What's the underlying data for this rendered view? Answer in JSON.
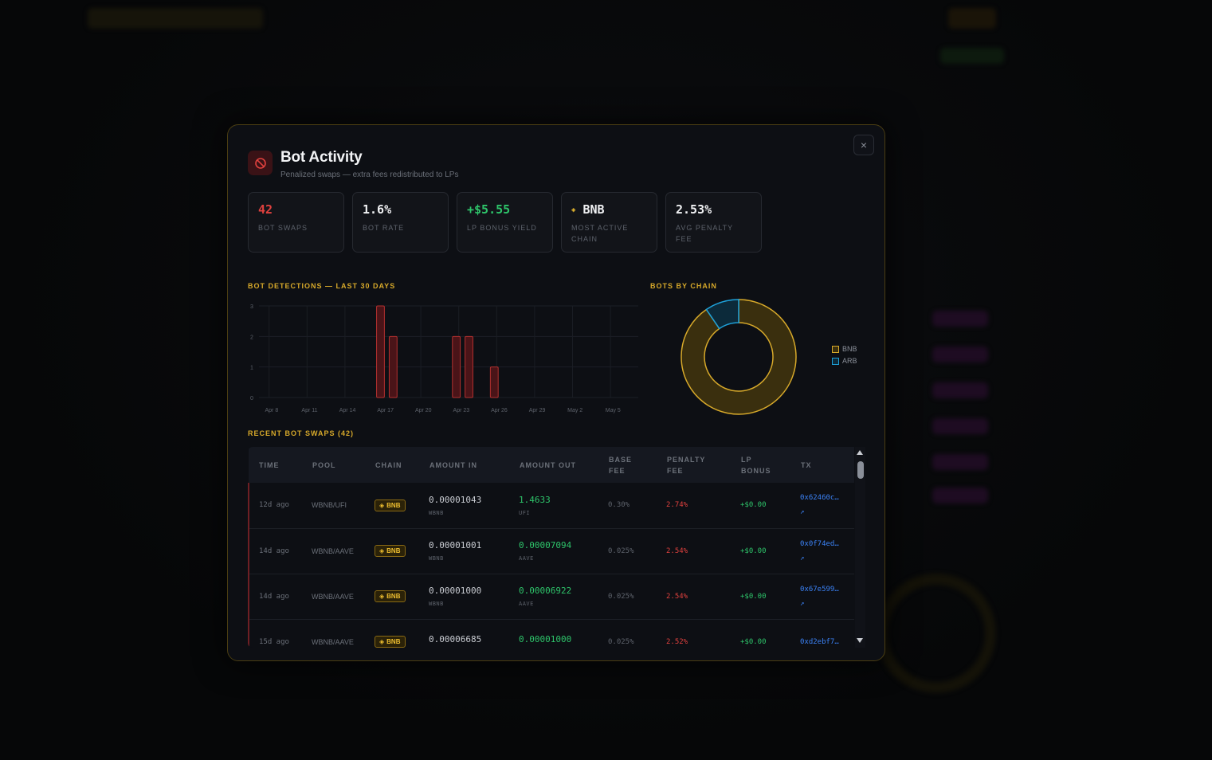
{
  "modal": {
    "title": "Bot Activity",
    "subtitle": "Penalized swaps — extra fees redistributed to LPs",
    "close_label": "×"
  },
  "stats": [
    {
      "value": "42",
      "label": "BOT SWAPS",
      "color": "#e0413e"
    },
    {
      "value": "1.6%",
      "label": "BOT RATE",
      "color": "#f0f1f3"
    },
    {
      "value": "+$5.55",
      "label": "LP BONUS YIELD",
      "color": "#2ec46a"
    },
    {
      "value": "BNB",
      "label": "MOST ACTIVE CHAIN",
      "color": "#f0f1f3",
      "icon": "bnb-icon"
    },
    {
      "value": "2.53%",
      "label": "AVG PENALTY FEE",
      "color": "#f0f1f3"
    }
  ],
  "detections_title": "BOT DETECTIONS — LAST 30 DAYS",
  "chain_title": "BOTS BY CHAIN",
  "swaps_title": "RECENT BOT SWAPS (42)",
  "chart_data": [
    {
      "type": "bar",
      "title": "BOT DETECTIONS — LAST 30 DAYS",
      "xlabel": "",
      "ylabel": "",
      "ylim": [
        0,
        3
      ],
      "yticks": [
        0,
        1,
        2,
        3
      ],
      "x_tick_labels": [
        "Apr 8",
        "Apr 11",
        "Apr 14",
        "Apr 17",
        "Apr 20",
        "Apr 23",
        "Apr 26",
        "Apr 29",
        "May 2",
        "May 5"
      ],
      "categories": [
        "Apr 7",
        "Apr 8",
        "Apr 9",
        "Apr 10",
        "Apr 11",
        "Apr 12",
        "Apr 13",
        "Apr 14",
        "Apr 15",
        "Apr 16",
        "Apr 17",
        "Apr 18",
        "Apr 19",
        "Apr 20",
        "Apr 21",
        "Apr 22",
        "Apr 23",
        "Apr 24",
        "Apr 25",
        "Apr 26",
        "Apr 27",
        "Apr 28",
        "Apr 29",
        "Apr 30",
        "May 1",
        "May 2",
        "May 3",
        "May 4",
        "May 5",
        "May 6"
      ],
      "values": [
        0,
        0,
        0,
        0,
        0,
        0,
        0,
        0,
        0,
        3,
        2,
        0,
        0,
        0,
        0,
        2,
        2,
        0,
        1,
        0,
        0,
        0,
        0,
        0,
        0,
        0,
        0,
        0,
        0,
        0
      ],
      "grid": true,
      "color": "#e0413e"
    },
    {
      "type": "pie",
      "title": "BOTS BY CHAIN",
      "categories": [
        "BNB",
        "ARB"
      ],
      "values": [
        38,
        4
      ],
      "colors": [
        "#d7a92a",
        "#1ea0d8"
      ],
      "legend": "right"
    }
  ],
  "table": {
    "headers": [
      [
        "TIME"
      ],
      [
        "POOL"
      ],
      [
        "CHAIN"
      ],
      [
        "AMOUNT IN"
      ],
      [
        "AMOUNT OUT"
      ],
      [
        "BASE",
        "FEE"
      ],
      [
        "PENALTY",
        "FEE"
      ],
      [
        "LP",
        "BONUS"
      ],
      [
        "TX"
      ]
    ],
    "rows": [
      {
        "time": "12d ago",
        "pool": "WBNB/UFI",
        "chain": "BNB",
        "amount_in": "0.00001043",
        "token_in": "WBNB",
        "amount_out": "1.4633",
        "token_out": "UFI",
        "base_fee": "0.30%",
        "penalty_fee": "2.74%",
        "lp_bonus": "+$0.00",
        "tx": "0x62460c…",
        "tx_link": "↗"
      },
      {
        "time": "14d ago",
        "pool": "WBNB/AAVE",
        "chain": "BNB",
        "amount_in": "0.00001001",
        "token_in": "WBNB",
        "amount_out": "0.00007094",
        "token_out": "AAVE",
        "base_fee": "0.025%",
        "penalty_fee": "2.54%",
        "lp_bonus": "+$0.00",
        "tx": "0x0f74ed…",
        "tx_link": "↗"
      },
      {
        "time": "14d ago",
        "pool": "WBNB/AAVE",
        "chain": "BNB",
        "amount_in": "0.00001000",
        "token_in": "WBNB",
        "amount_out": "0.00006922",
        "token_out": "AAVE",
        "base_fee": "0.025%",
        "penalty_fee": "2.54%",
        "lp_bonus": "+$0.00",
        "tx": "0x67e599…",
        "tx_link": "↗"
      },
      {
        "time": "15d ago",
        "pool": "WBNB/AAVE",
        "chain": "BNB",
        "amount_in": "0.00006685",
        "token_in": "",
        "amount_out": "0.00001000",
        "token_out": "",
        "base_fee": "0.025%",
        "penalty_fee": "2.52%",
        "lp_bonus": "+$0.00",
        "tx": "0xd2ebf7…",
        "tx_link": ""
      }
    ]
  },
  "colors": {
    "accent": "#d7a92a",
    "danger": "#e0413e",
    "success": "#2ec46a",
    "link": "#3b82f6",
    "bnb": "#f0c030",
    "arb": "#1ea0d8"
  }
}
